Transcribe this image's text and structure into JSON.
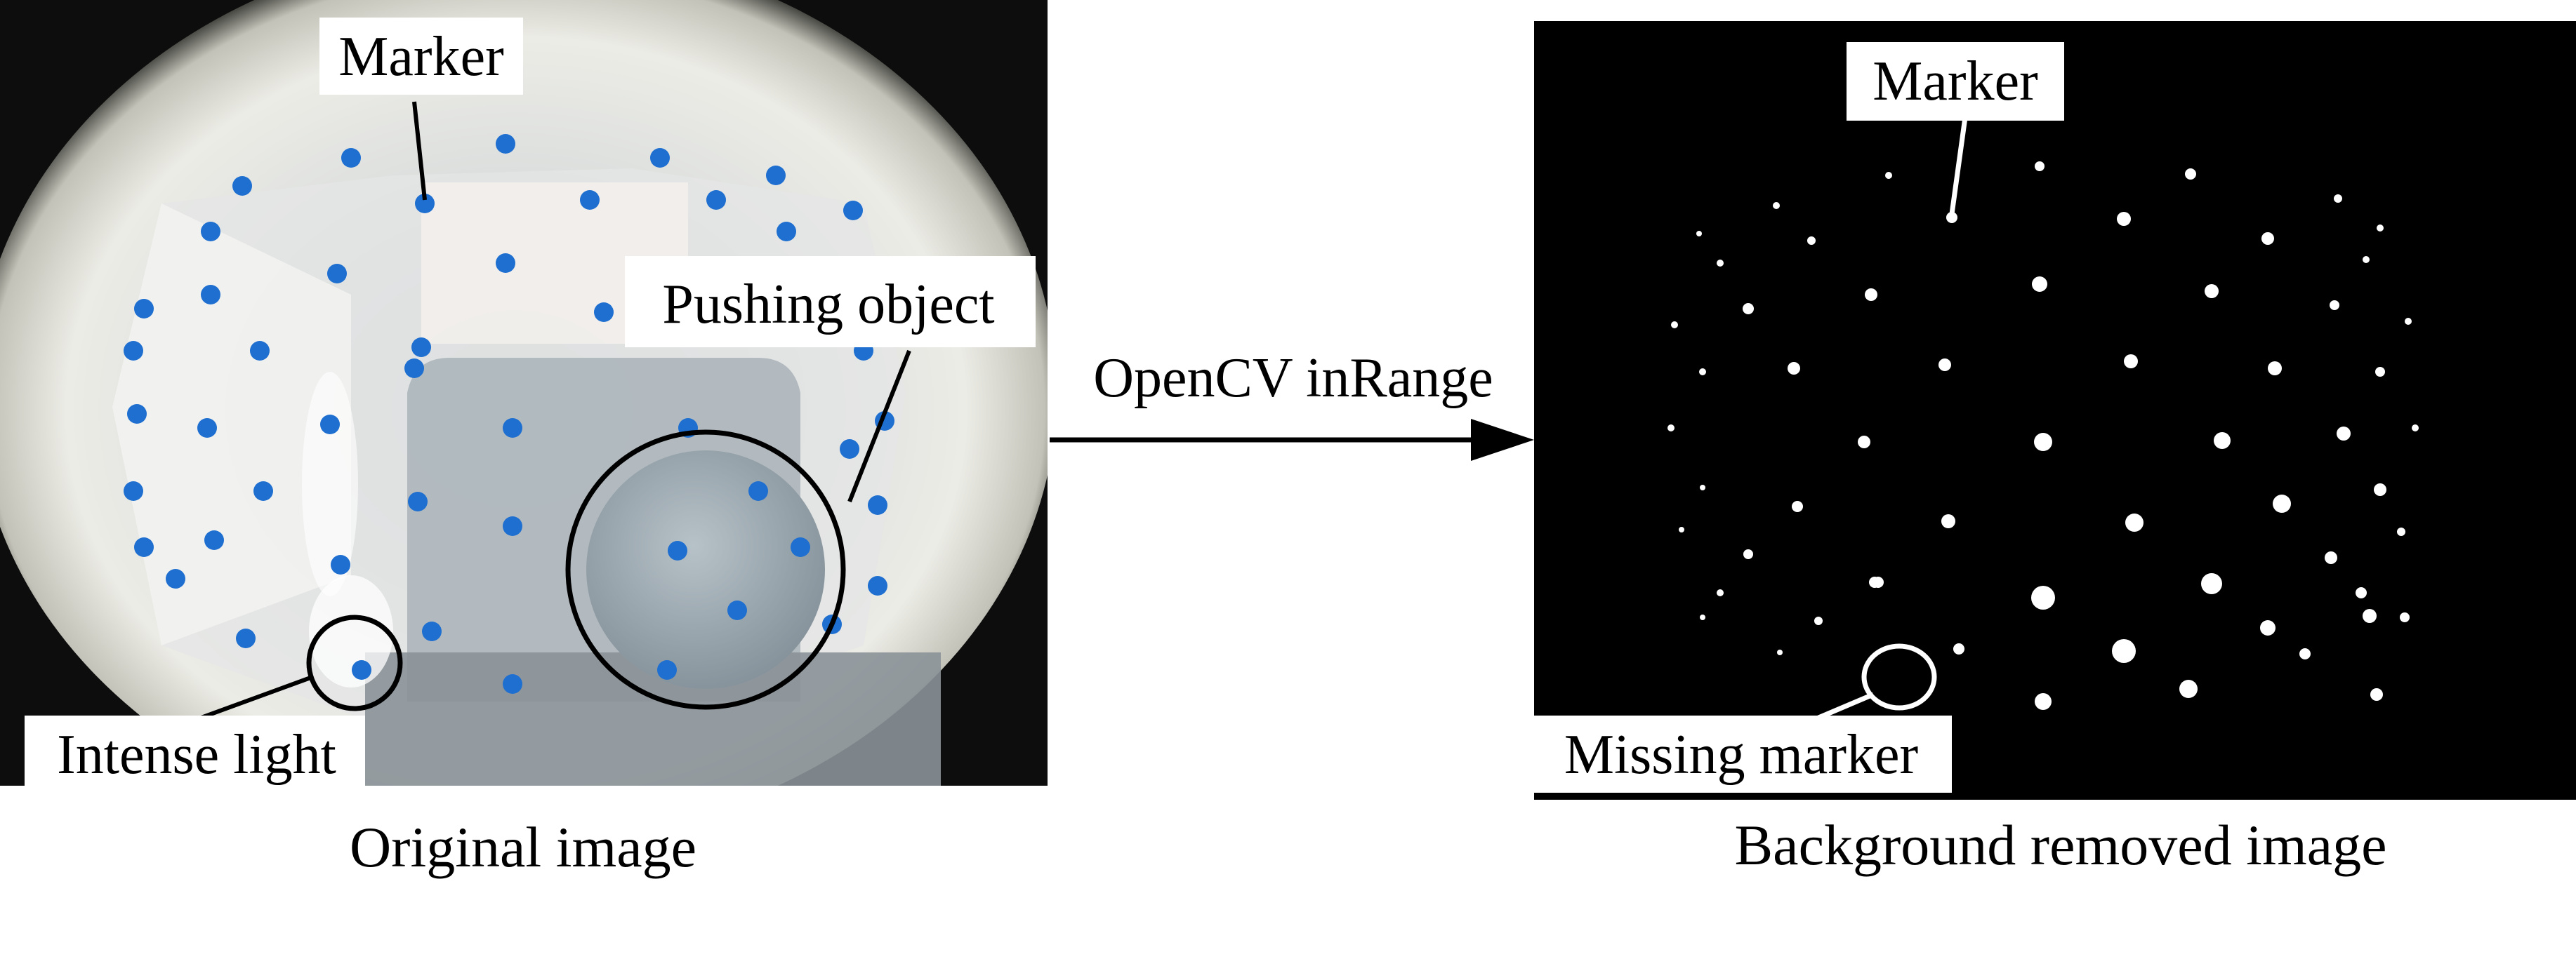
{
  "left_panel": {
    "caption": "Original image",
    "labels": {
      "marker": "Marker",
      "pushing_object": "Pushing object",
      "intense_light": "Intense light"
    },
    "colors": {
      "marker_blue": "#1e6fd0",
      "fisheye_rim": "#cfcfc8",
      "frame_bg": "#0d0d0d",
      "object_gray": "#9aa6ae"
    }
  },
  "arrow": {
    "label": "OpenCV inRange"
  },
  "right_panel": {
    "caption": "Background removed image",
    "labels": {
      "marker": "Marker",
      "missing_marker": "Missing marker"
    },
    "colors": {
      "background": "#000000",
      "marker_dot": "#ffffff"
    }
  }
}
